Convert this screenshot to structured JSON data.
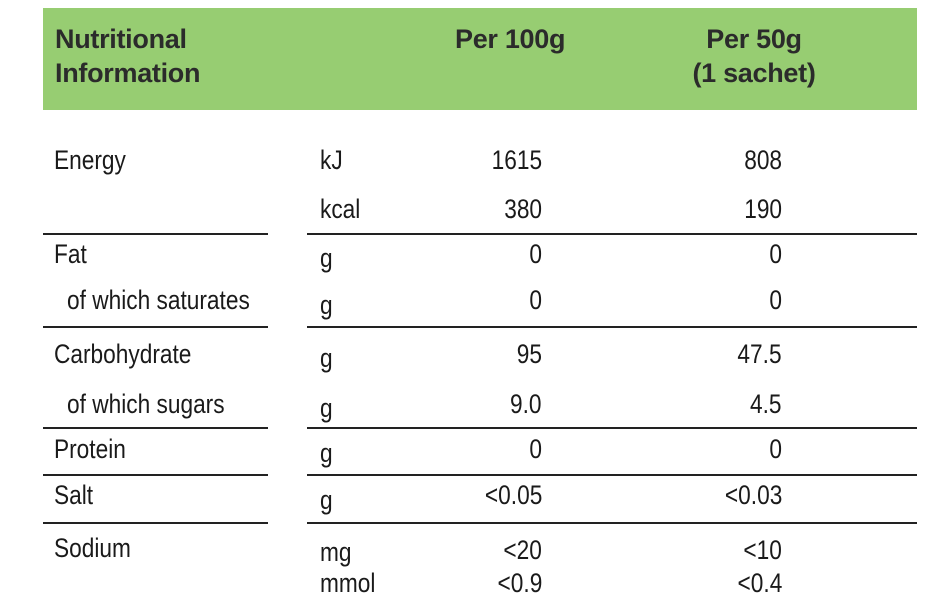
{
  "header": {
    "title_line1": "Nutritional",
    "title_line2": "Information",
    "col_100g": "Per 100g",
    "col_50g_line1": "Per 50g",
    "col_50g_line2": "(1 sachet)"
  },
  "rows": [
    {
      "label": "Energy",
      "unit": "kJ",
      "per100": "1615",
      "per50": "808"
    },
    {
      "label": "",
      "unit": "kcal",
      "per100": "380",
      "per50": "190"
    },
    {
      "label": "Fat",
      "unit": "g",
      "per100": "0",
      "per50": "0"
    },
    {
      "label": "of which saturates",
      "unit": "g",
      "per100": "0",
      "per50": "0"
    },
    {
      "label": "Carbohydrate",
      "unit": "g",
      "per100": "95",
      "per50": "47.5"
    },
    {
      "label": "of which sugars",
      "unit": "g",
      "per100": "9.0",
      "per50": "4.5"
    },
    {
      "label": "Protein",
      "unit": "g",
      "per100": "0",
      "per50": "0"
    },
    {
      "label": "Salt",
      "unit": "g",
      "per100": "<0.05",
      "per50": "<0.03"
    },
    {
      "label": "Sodium",
      "unit": "mg",
      "per100": "<20",
      "per50": "<10"
    },
    {
      "label": "",
      "unit": "mmol",
      "per100": "<0.9",
      "per50": "<0.4"
    }
  ],
  "colors": {
    "header_bg": "#97cd72",
    "text": "#1a1a1a",
    "rule": "#222222"
  }
}
